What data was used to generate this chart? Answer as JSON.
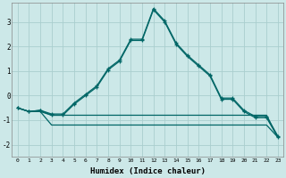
{
  "xlabel": "Humidex (Indice chaleur)",
  "bg_color": "#cce8e8",
  "grid_color": "#aacece",
  "line_color": "#006666",
  "xlim": [
    -0.5,
    23.5
  ],
  "ylim": [
    -2.5,
    3.8
  ],
  "yticks": [
    -2,
    -1,
    0,
    1,
    2,
    3
  ],
  "xticks": [
    0,
    1,
    2,
    3,
    4,
    5,
    6,
    7,
    8,
    9,
    10,
    11,
    12,
    13,
    14,
    15,
    16,
    17,
    18,
    19,
    20,
    21,
    22,
    23
  ],
  "line1_x": [
    0,
    1,
    2,
    3,
    4,
    5,
    6,
    7,
    8,
    9,
    10,
    11,
    12,
    13,
    14,
    15,
    16,
    17,
    18,
    19,
    20,
    21,
    22,
    23
  ],
  "line1_y": [
    -0.5,
    -0.65,
    -0.65,
    -1.2,
    -1.2,
    -1.2,
    -1.2,
    -1.2,
    -1.2,
    -1.2,
    -1.2,
    -1.2,
    -1.2,
    -1.2,
    -1.2,
    -1.2,
    -1.2,
    -1.2,
    -1.2,
    -1.2,
    -1.2,
    -1.2,
    -1.2,
    -1.7
  ],
  "line2_x": [
    0,
    1,
    2,
    3,
    4,
    5,
    6,
    7,
    8,
    9,
    10,
    11,
    12,
    13,
    14,
    15,
    16,
    17,
    18,
    19,
    20,
    21,
    22,
    23
  ],
  "line2_y": [
    -0.5,
    -0.65,
    -0.65,
    -0.8,
    -0.8,
    -0.8,
    -0.8,
    -0.8,
    -0.8,
    -0.8,
    -0.8,
    -0.8,
    -0.8,
    -0.8,
    -0.8,
    -0.8,
    -0.8,
    -0.8,
    -0.8,
    -0.8,
    -0.8,
    -0.8,
    -0.8,
    -1.7
  ],
  "line3_x": [
    0,
    1,
    2,
    3,
    4,
    5,
    6,
    7,
    8,
    9,
    10,
    11,
    12,
    13,
    14,
    15,
    16,
    17,
    18,
    19,
    20,
    21,
    22,
    23
  ],
  "line3_y": [
    -0.5,
    -0.65,
    -0.6,
    -0.8,
    -0.8,
    -0.35,
    0.0,
    0.35,
    1.05,
    1.4,
    2.25,
    2.25,
    3.5,
    3.0,
    2.1,
    1.6,
    1.2,
    0.8,
    -0.15,
    -0.15,
    -0.65,
    -0.9,
    -0.9,
    -1.7
  ],
  "line4_x": [
    0,
    1,
    2,
    3,
    4,
    5,
    6,
    7,
    8,
    9,
    10,
    11,
    12,
    13,
    14,
    15,
    16,
    17,
    18,
    19,
    20,
    21,
    22,
    23
  ],
  "line4_y": [
    -0.5,
    -0.65,
    -0.6,
    -0.75,
    -0.75,
    -0.3,
    0.05,
    0.4,
    1.1,
    1.45,
    2.3,
    2.3,
    3.55,
    3.05,
    2.15,
    1.65,
    1.25,
    0.85,
    -0.1,
    -0.1,
    -0.6,
    -0.85,
    -0.85,
    -1.65
  ],
  "marker": "+"
}
